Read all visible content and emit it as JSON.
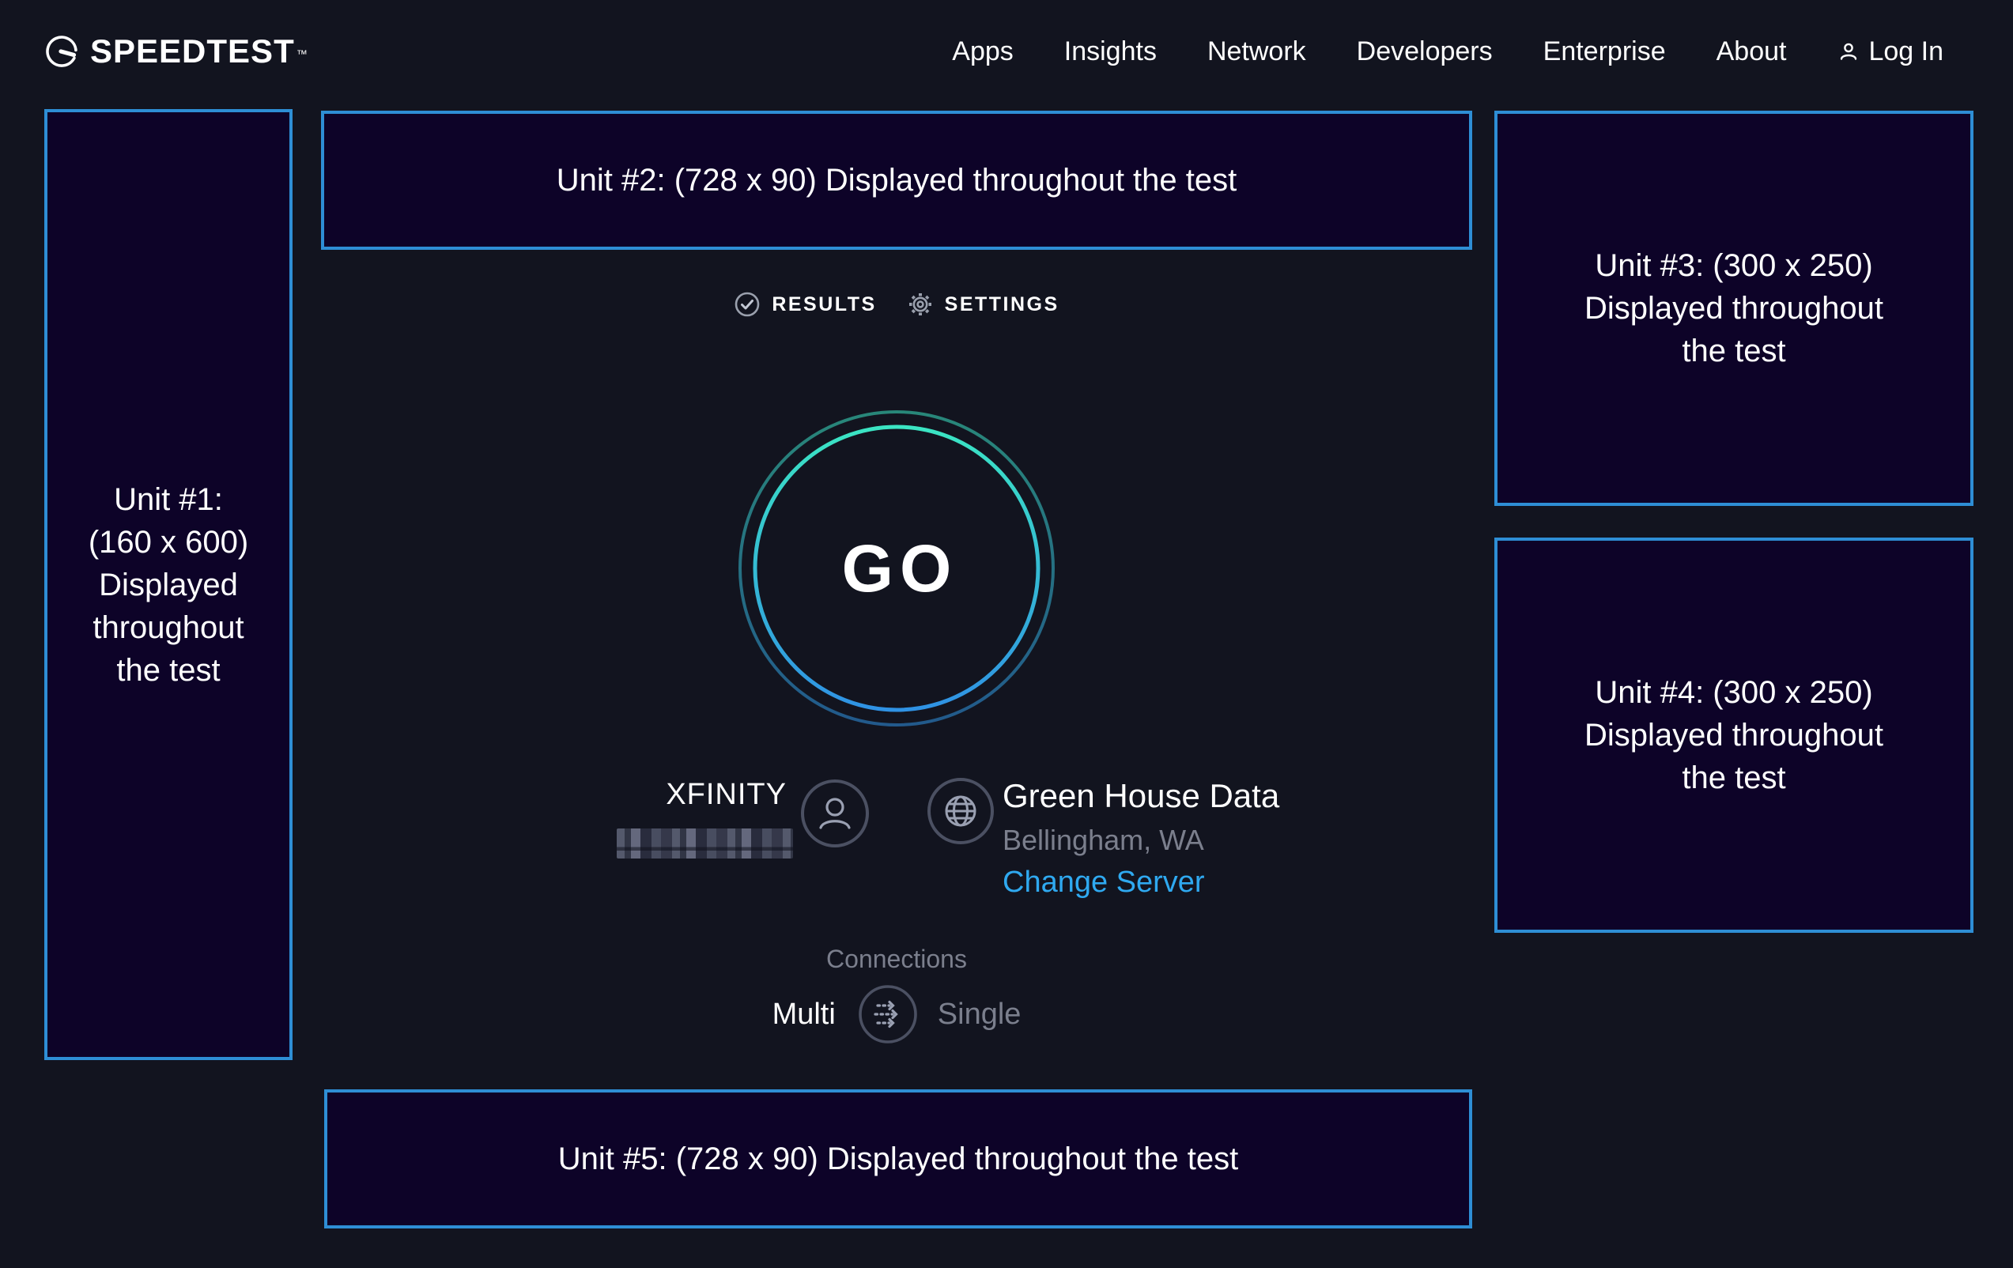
{
  "header": {
    "brand": {
      "name": "SPEEDTEST",
      "trademark": "™",
      "icon": "speedometer-icon"
    },
    "nav_items": [
      {
        "label": "Apps"
      },
      {
        "label": "Insights"
      },
      {
        "label": "Network"
      },
      {
        "label": "Developers"
      },
      {
        "label": "Enterprise"
      },
      {
        "label": "About"
      }
    ],
    "login": {
      "label": "Log In",
      "icon": "user-icon"
    }
  },
  "tabs": {
    "results": {
      "label": "RESULTS",
      "icon": "check-circle-icon"
    },
    "settings": {
      "label": "SETTINGS",
      "icon": "gear-icon"
    }
  },
  "speed_test": {
    "go_label": "GO"
  },
  "isp": {
    "name": "XFINITY",
    "ip_redacted": true,
    "icon": "user-circle-icon"
  },
  "server": {
    "name": "Green House Data",
    "location": "Bellingham, WA",
    "change_label": "Change Server",
    "icon": "globe-icon"
  },
  "connections": {
    "title": "Connections",
    "multi_label": "Multi",
    "single_label": "Single",
    "selected": "Multi",
    "icon": "multi-arrows-icon"
  },
  "ads": [
    {
      "lines": [
        "Unit #1:",
        "(160 x 600)",
        "Displayed",
        "throughout",
        "the test"
      ]
    },
    {
      "lines": [
        "Unit #2: (728 x 90) Displayed throughout the test"
      ]
    },
    {
      "lines": [
        "Unit #3: (300 x 250)",
        "Displayed throughout",
        "the test"
      ]
    },
    {
      "lines": [
        "Unit #4: (300 x 250)",
        "Displayed throughout",
        "the test"
      ]
    },
    {
      "lines": [
        "Unit #5: (728 x 90) Displayed throughout the test"
      ]
    }
  ],
  "colors": {
    "page_background": "#12141f",
    "ad_background": "#0d0328",
    "ad_border_blue": "#2e8ed5",
    "link_blue": "#2fa9f0",
    "gauge_teal": "#3be5c3",
    "gauge_blue": "#2f92e4",
    "muted_gray": "#7b7f8d",
    "icon_gray": "#9aa0b2"
  }
}
